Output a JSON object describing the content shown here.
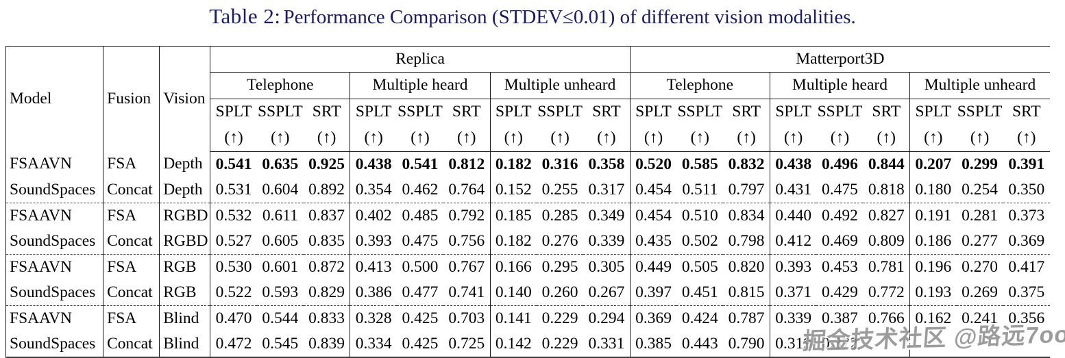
{
  "title": {
    "label": "Table 2:",
    "text": "Performance Comparison (STDEV≤0.01) of different vision modalities."
  },
  "watermark": "掘金技术社区 @路远7oo",
  "table": {
    "left_columns": [
      "Model",
      "Fusion",
      "Vision"
    ],
    "dataset_groups": [
      {
        "name": "Replica",
        "conditions": [
          "Telephone",
          "Multiple heard",
          "Multiple unheard"
        ]
      },
      {
        "name": "Matterport3D",
        "conditions": [
          "Telephone",
          "Multiple heard",
          "Multiple unheard"
        ]
      }
    ],
    "metrics": [
      "SPLT",
      "SSPLT",
      "SRT"
    ],
    "arrow": "(↑)",
    "rows": [
      {
        "model": "FSAAVN",
        "fusion": "FSA",
        "vision": "Depth",
        "bold": true,
        "values": [
          "0.541",
          "0.635",
          "0.925",
          "0.438",
          "0.541",
          "0.812",
          "0.182",
          "0.316",
          "0.358",
          "0.520",
          "0.585",
          "0.832",
          "0.438",
          "0.496",
          "0.844",
          "0.207",
          "0.299",
          "0.391"
        ]
      },
      {
        "model": "SoundSpaces",
        "fusion": "Concat",
        "vision": "Depth",
        "bold": false,
        "values": [
          "0.531",
          "0.604",
          "0.892",
          "0.354",
          "0.462",
          "0.764",
          "0.152",
          "0.255",
          "0.317",
          "0.454",
          "0.511",
          "0.797",
          "0.431",
          "0.475",
          "0.818",
          "0.180",
          "0.254",
          "0.350"
        ]
      },
      {
        "model": "FSAAVN",
        "fusion": "FSA",
        "vision": "RGBD",
        "bold": false,
        "values": [
          "0.532",
          "0.611",
          "0.837",
          "0.402",
          "0.485",
          "0.792",
          "0.185",
          "0.285",
          "0.349",
          "0.454",
          "0.510",
          "0.834",
          "0.440",
          "0.492",
          "0.827",
          "0.191",
          "0.281",
          "0.373"
        ]
      },
      {
        "model": "SoundSpaces",
        "fusion": "Concat",
        "vision": "RGBD",
        "bold": false,
        "values": [
          "0.527",
          "0.605",
          "0.835",
          "0.393",
          "0.475",
          "0.756",
          "0.182",
          "0.276",
          "0.339",
          "0.435",
          "0.502",
          "0.798",
          "0.412",
          "0.469",
          "0.809",
          "0.186",
          "0.277",
          "0.369"
        ]
      },
      {
        "model": "FSAAVN",
        "fusion": "FSA",
        "vision": "RGB",
        "bold": false,
        "values": [
          "0.530",
          "0.601",
          "0.872",
          "0.413",
          "0.500",
          "0.767",
          "0.166",
          "0.295",
          "0.305",
          "0.449",
          "0.505",
          "0.820",
          "0.393",
          "0.453",
          "0.781",
          "0.196",
          "0.270",
          "0.417"
        ]
      },
      {
        "model": "SoundSpaces",
        "fusion": "Concat",
        "vision": "RGB",
        "bold": false,
        "values": [
          "0.522",
          "0.593",
          "0.829",
          "0.386",
          "0.477",
          "0.741",
          "0.140",
          "0.260",
          "0.267",
          "0.397",
          "0.451",
          "0.815",
          "0.371",
          "0.429",
          "0.772",
          "0.193",
          "0.269",
          "0.375"
        ]
      },
      {
        "model": "FSAAVN",
        "fusion": "FSA",
        "vision": "Blind",
        "bold": false,
        "values": [
          "0.470",
          "0.544",
          "0.833",
          "0.328",
          "0.425",
          "0.703",
          "0.141",
          "0.229",
          "0.294",
          "0.369",
          "0.424",
          "0.787",
          "0.339",
          "0.387",
          "0.766",
          "0.162",
          "0.241",
          "0.356"
        ]
      },
      {
        "model": "SoundSpaces",
        "fusion": "Concat",
        "vision": "Blind",
        "bold": false,
        "values": [
          "0.472",
          "0.545",
          "0.839",
          "0.334",
          "0.425",
          "0.725",
          "0.142",
          "0.229",
          "0.331",
          "0.385",
          "0.443",
          "0.790",
          "0.319",
          "0.372",
          "",
          "",
          "",
          ""
        ]
      }
    ]
  }
}
